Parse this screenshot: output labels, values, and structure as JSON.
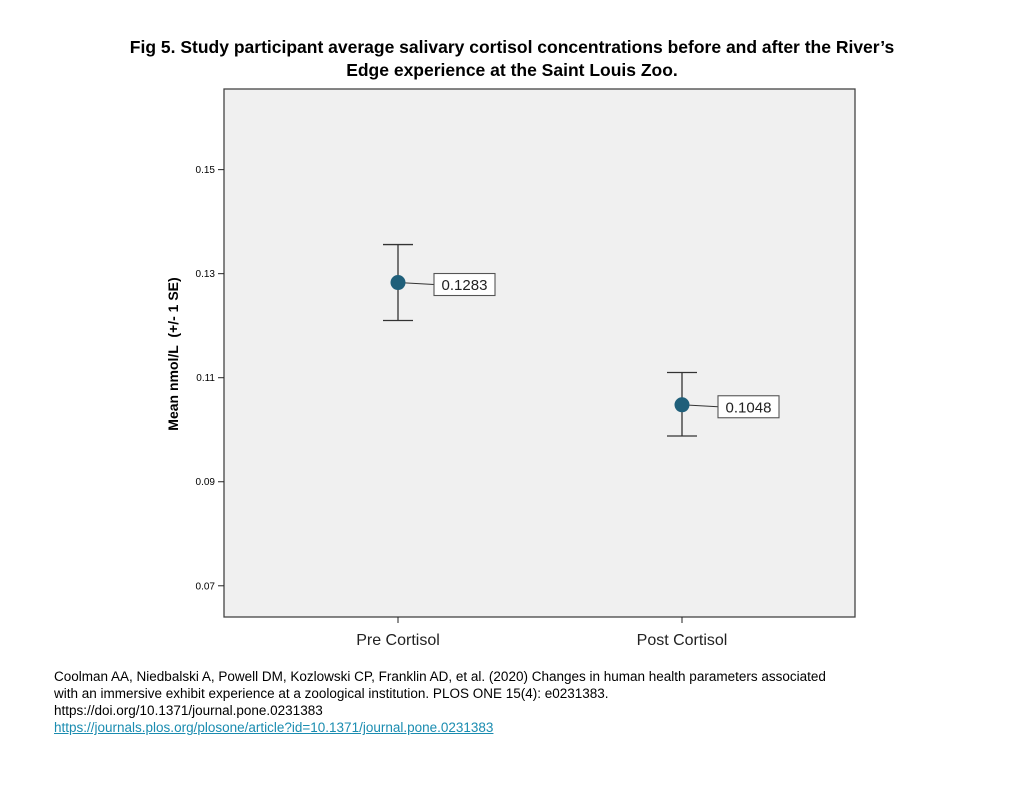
{
  "figure": {
    "title_line1": "Fig 5. Study participant average salivary cortisol concentrations before and after the River’s",
    "title_line2": "Edge experience at the Saint Louis Zoo."
  },
  "chart_data": {
    "type": "scatter",
    "subtype": "error-bar",
    "categories": [
      "Pre Cortisol",
      "Post Cortisol"
    ],
    "values": [
      0.1283,
      0.1048
    ],
    "error_bars": [
      {
        "low": 0.121,
        "high": 0.1356
      },
      {
        "low": 0.0988,
        "high": 0.111
      }
    ],
    "data_labels": [
      "0.1283",
      "0.1048"
    ],
    "ylabel": "Mean nmol/L  (+/- 1 SE)",
    "xlabel": "",
    "ylim": [
      0.064,
      0.1655
    ],
    "yticks": [
      0.07,
      0.09,
      0.11,
      0.13,
      0.15
    ],
    "ytick_labels": [
      "0.07",
      "0.09",
      "0.11",
      "0.13",
      "0.15"
    ],
    "grid": false,
    "colors": {
      "plot_background": "#f0f0f0",
      "marker": "#1f5f7a",
      "frame": "#444444"
    }
  },
  "citation": {
    "line1": "Coolman AA, Niedbalski A, Powell DM, Kozlowski CP, Franklin AD, et al. (2020) Changes in human health parameters associated",
    "line2": "with an immersive exhibit experience at a zoological institution.  PLOS ONE 15(4): e0231383.",
    "doi": "https://doi.org/10.1371/journal.pone.0231383",
    "link": "https://journals.plos.org/plosone/article?id=10.1371/journal.pone.0231383"
  }
}
